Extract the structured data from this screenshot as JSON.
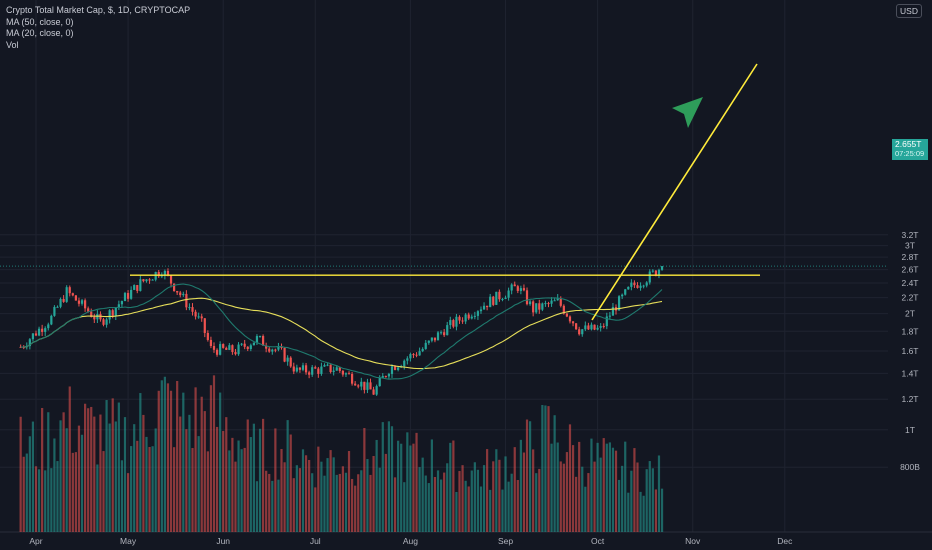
{
  "legend": {
    "title": "Crypto Total Market Cap, $, 1D, CRYPTOCAP",
    "ma50": "MA (50, close, 0)",
    "ma20": "MA (20, close, 0)",
    "vol": "Vol"
  },
  "currency_badge": "USD",
  "last_price": {
    "value": "2.655T",
    "countdown": "07:25:09"
  },
  "colors": {
    "background": "#131722",
    "up": "#26a69a",
    "down": "#ef5350",
    "ma50": "#e6de5a",
    "ma20": "#1f7a6e",
    "drawing": "#ffeb3b",
    "arrow": "#2e9d5a"
  },
  "chart_data": {
    "type": "candlestick",
    "x_axis": {
      "labels": [
        "Apr",
        "May",
        "Jun",
        "Jul",
        "Aug",
        "Sep",
        "Oct",
        "Nov",
        "Dec"
      ]
    },
    "y_axis": {
      "scale": "log",
      "labels": [
        "3.2T",
        "3T",
        "2.8T",
        "2.6T",
        "2.4T",
        "2.2T",
        "2T",
        "1.8T",
        "1.6T",
        "1.4T",
        "1.2T",
        "1T",
        "800B"
      ]
    },
    "last_value": "2.655T",
    "horizontal_level": 2.515,
    "waypoints": [
      {
        "date": "Mar 27",
        "close": 1.64
      },
      {
        "date": "Apr 6",
        "close": 1.95
      },
      {
        "date": "Apr 11",
        "close": 2.28
      },
      {
        "date": "Apr 22",
        "close": 1.9
      },
      {
        "date": "Apr 30",
        "close": 2.2
      },
      {
        "date": "May 5",
        "close": 2.4
      },
      {
        "date": "May 12",
        "close": 2.6
      },
      {
        "date": "May 17",
        "close": 2.3
      },
      {
        "date": "May 25",
        "close": 1.88
      },
      {
        "date": "May 28",
        "close": 1.62
      },
      {
        "date": "Jun 5",
        "close": 1.6
      },
      {
        "date": "Jun 12",
        "close": 1.72
      },
      {
        "date": "Jun 20",
        "close": 1.58
      },
      {
        "date": "Jun 25",
        "close": 1.42
      },
      {
        "date": "Jul 1",
        "close": 1.43
      },
      {
        "date": "Jul 8",
        "close": 1.44
      },
      {
        "date": "Jul 14",
        "close": 1.35
      },
      {
        "date": "Jul 20",
        "close": 1.25
      },
      {
        "date": "Jul 25",
        "close": 1.44
      },
      {
        "date": "Aug 5",
        "close": 1.62
      },
      {
        "date": "Aug 12",
        "close": 1.82
      },
      {
        "date": "Aug 20",
        "close": 2.0
      },
      {
        "date": "Aug 28",
        "close": 2.18
      },
      {
        "date": "Sep 5",
        "close": 2.35
      },
      {
        "date": "Sep 10",
        "close": 2.05
      },
      {
        "date": "Sep 18",
        "close": 2.15
      },
      {
        "date": "Sep 25",
        "close": 1.82
      },
      {
        "date": "Oct 2",
        "close": 1.82
      },
      {
        "date": "Oct 6",
        "close": 2.05
      },
      {
        "date": "Oct 12",
        "close": 2.35
      },
      {
        "date": "Oct 18",
        "close": 2.5
      },
      {
        "date": "Oct 22",
        "close": 2.655
      }
    ],
    "volume_profile": [
      {
        "date": "Apr 1",
        "volume": 85
      },
      {
        "date": "Apr 11",
        "volume": 110
      },
      {
        "date": "Apr 20",
        "volume": 100
      },
      {
        "date": "May 1",
        "volume": 95
      },
      {
        "date": "May 12",
        "volume": 130
      },
      {
        "date": "May 20",
        "volume": 110
      },
      {
        "date": "May 28",
        "volume": 120
      },
      {
        "date": "Jun 10",
        "volume": 80
      },
      {
        "date": "Jun 20",
        "volume": 85
      },
      {
        "date": "Jul 1",
        "volume": 70
      },
      {
        "date": "Jul 15",
        "volume": 75
      },
      {
        "date": "Jul 25",
        "volume": 80
      },
      {
        "date": "Aug 10",
        "volume": 70
      },
      {
        "date": "Aug 25",
        "volume": 60
      },
      {
        "date": "Sep 5",
        "volume": 75
      },
      {
        "date": "Sep 15",
        "volume": 100
      },
      {
        "date": "Sep 25",
        "volume": 75
      },
      {
        "date": "Oct 10",
        "volume": 65
      },
      {
        "date": "Oct 22",
        "volume": 55
      }
    ],
    "moving_averages": [
      {
        "name": "MA (50, close, 0)",
        "period": 50
      },
      {
        "name": "MA (20, close, 0)",
        "period": 20
      }
    ],
    "grid": true
  }
}
